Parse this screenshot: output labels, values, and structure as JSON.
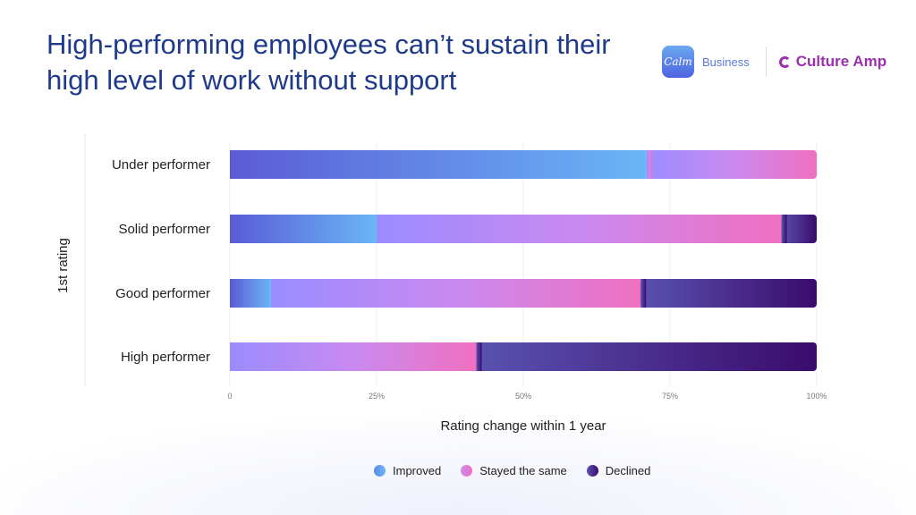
{
  "title": "High-performing employees can’t sustain their high level of work without support",
  "logos": {
    "calm_mark": "Calm",
    "calm_label": "Business",
    "culture_amp": "Culture Amp"
  },
  "chart_data": {
    "type": "bar",
    "orientation": "horizontal",
    "stacked": true,
    "categories": [
      "Under performer",
      "Solid performer",
      "Good performer",
      "High performer"
    ],
    "series": [
      {
        "name": "Improved",
        "values": [
          71,
          25,
          7,
          0
        ],
        "color": "#6aa8f0"
      },
      {
        "name": "Stayed the same",
        "values": [
          29,
          69,
          63,
          42
        ],
        "color": "#e07ad8"
      },
      {
        "name": "Declined",
        "values": [
          0,
          6,
          30,
          58
        ],
        "color": "#3f1f86"
      }
    ],
    "xlabel": "Rating change within 1 year",
    "ylabel": "1st rating",
    "xlim": [
      0,
      100
    ],
    "xticks": [
      "0",
      "25%",
      "50%",
      "75%",
      "100%"
    ],
    "grid": true,
    "legend_position": "bottom"
  }
}
